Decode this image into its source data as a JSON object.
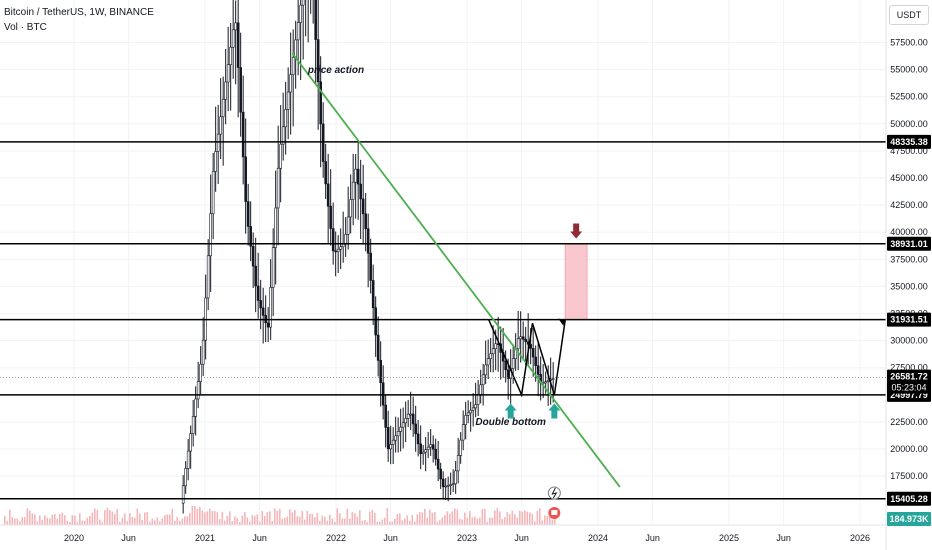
{
  "header": {
    "title": "Bitcoin / TetherUS, 1W, BINANCE",
    "volume_label": "Vol · BTC"
  },
  "quote_unit": "USDT",
  "chart_data": {
    "type": "candlestick",
    "symbol": "Bitcoin / TetherUS",
    "interval": "1W",
    "exchange": "BINANCE",
    "x_ticks": [
      "2020",
      "Jun",
      "2021",
      "Jun",
      "2022",
      "Jun",
      "2023",
      "Jun",
      "2024",
      "Jun",
      "2025",
      "Jun",
      "2026"
    ],
    "x_tick_dates": [
      "2020-01",
      "2020-06",
      "2021-01",
      "2021-06",
      "2022-01",
      "2022-06",
      "2023-01",
      "2023-06",
      "2024-01",
      "2024-06",
      "2025-01",
      "2025-06",
      "2026-01"
    ],
    "y_ticks": [
      57500,
      55000,
      52500,
      50000,
      47500,
      45000,
      42500,
      40000,
      37500,
      35000,
      32500,
      30000,
      27500,
      25000,
      22500,
      20000,
      17500
    ],
    "y_tick_labels": [
      "57500.00",
      "55000.00",
      "52500.00",
      "50000.00",
      "47500.00",
      "45000.00",
      "42500.00",
      "40000.00",
      "37500.00",
      "35000.00",
      "32500.00",
      "30000.00",
      "27500.00",
      "25000.00",
      "22500.00",
      "20000.00",
      "17500.00"
    ],
    "horizontal_levels": [
      {
        "value": 48335.38,
        "label": "48335.38"
      },
      {
        "value": 38931.01,
        "label": "38931.01"
      },
      {
        "value": 31931.51,
        "label": "31931.51"
      },
      {
        "value": 24997.79,
        "label": "24997.79"
      },
      {
        "value": 15405.28,
        "label": "15405.28"
      }
    ],
    "last_price": {
      "value": 26581.72,
      "label": "26581.72",
      "countdown": "05:23:04"
    },
    "volume_label": "184.973K",
    "trendline": {
      "start": [
        "2021-09",
        56500
      ],
      "end": [
        "2024-03",
        16500
      ],
      "color": "#4caf50"
    },
    "target_zone": {
      "start": "2023-10",
      "end": "2023-12",
      "low": 31931.51,
      "high": 38931.01
    },
    "annotations": [
      {
        "text": "price action",
        "date": "2022-01",
        "value": 54700
      },
      {
        "text": "Double bottom",
        "date": "2023-05",
        "value": 22200
      }
    ],
    "colors": {
      "level": "#000000",
      "trend": "#4caf50",
      "zone": "#f8bfc6",
      "arrow_up": "#26a69a",
      "arrow_down": "#8e2b36",
      "volume": "#f3a8ad"
    }
  }
}
